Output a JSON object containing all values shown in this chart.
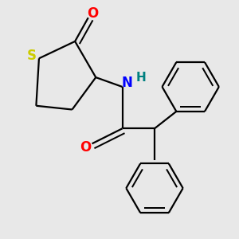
{
  "bg_color": "#e8e8e8",
  "atom_colors": {
    "S": "#cccc00",
    "N": "#0000ff",
    "O": "#ff0000",
    "H": "#008080",
    "C": "#000000"
  },
  "line_color": "#000000",
  "line_width": 1.6
}
